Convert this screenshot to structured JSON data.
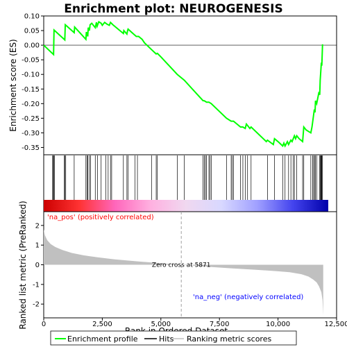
{
  "chart_data": {
    "type": "line",
    "title": "Enrichment plot: NEUROGENESIS",
    "colors": {
      "enrichment": "#00ff00",
      "hits": "#000000",
      "metric_fill": "#c0c0c0",
      "zero_cross": "#a0a0a0",
      "pos_label": "#ff0000",
      "neg_label": "#0000ff"
    },
    "top_panel": {
      "ylabel": "Enrichment score (ES)",
      "ylim": [
        -0.375,
        0.1
      ],
      "yticks": [
        0.1,
        0.05,
        0.0,
        -0.05,
        -0.1,
        -0.15,
        -0.2,
        -0.25,
        -0.3,
        -0.35
      ],
      "ytick_labels": [
        "0.10",
        "0.05",
        "0.00",
        "-0.05",
        "-0.10",
        "-0.15",
        "-0.20",
        "-0.25",
        "-0.30",
        "-0.35"
      ],
      "xlim": [
        0,
        12500
      ],
      "es_profile": {
        "x": [
          0,
          420,
          440,
          900,
          920,
          1300,
          1320,
          1800,
          1820,
          1880,
          1900,
          1950,
          1980,
          2050,
          2200,
          2250,
          2280,
          2350,
          2450,
          2500,
          2600,
          2700,
          2800,
          2850,
          2950,
          3400,
          3420,
          3550,
          3580,
          3600,
          3950,
          4050,
          4200,
          4300,
          4600,
          4800,
          4850,
          5000,
          5700,
          6000,
          6800,
          6850,
          6950,
          7050,
          7150,
          7800,
          8000,
          8050,
          8100,
          8400,
          8500,
          8600,
          8650,
          8700,
          8800,
          8850,
          9500,
          9550,
          9800,
          9850,
          10000,
          10200,
          10250,
          10300,
          10400,
          10450,
          10550,
          10600,
          10700,
          10750,
          10800,
          10900,
          11050,
          11100,
          11200,
          11400,
          11450,
          11500,
          11550,
          11580,
          11600,
          11650,
          11750,
          11780,
          11800,
          11850,
          11870,
          11900
        ],
        "y": [
          0.0,
          -0.032,
          0.052,
          0.018,
          0.07,
          0.043,
          0.062,
          0.02,
          0.045,
          0.03,
          0.06,
          0.05,
          0.07,
          0.075,
          0.06,
          0.078,
          0.065,
          0.08,
          0.075,
          0.068,
          0.078,
          0.072,
          0.068,
          0.078,
          0.07,
          0.04,
          0.05,
          0.038,
          0.05,
          0.055,
          0.03,
          0.03,
          0.02,
          0.008,
          -0.015,
          -0.03,
          -0.028,
          -0.04,
          -0.1,
          -0.12,
          -0.19,
          -0.19,
          -0.195,
          -0.195,
          -0.2,
          -0.25,
          -0.26,
          -0.26,
          -0.26,
          -0.28,
          -0.28,
          -0.285,
          -0.27,
          -0.275,
          -0.285,
          -0.28,
          -0.33,
          -0.325,
          -0.34,
          -0.32,
          -0.33,
          -0.345,
          -0.335,
          -0.345,
          -0.33,
          -0.34,
          -0.325,
          -0.33,
          -0.31,
          -0.32,
          -0.31,
          -0.32,
          -0.33,
          -0.28,
          -0.29,
          -0.3,
          -0.28,
          -0.25,
          -0.22,
          -0.23,
          -0.19,
          -0.2,
          -0.16,
          -0.17,
          -0.12,
          -0.06,
          -0.07,
          0.003
        ]
      }
    },
    "hits_panel": {
      "positions": [
        380,
        400,
        430,
        460,
        880,
        900,
        940,
        1300,
        1800,
        1850,
        1880,
        1950,
        2000,
        2200,
        2300,
        2450,
        2650,
        2750,
        2850,
        2900,
        3400,
        3550,
        3600,
        3900,
        4000,
        4600,
        4800,
        4850,
        5700,
        6000,
        6800,
        6850,
        6900,
        6950,
        7050,
        7100,
        7150,
        7800,
        8000,
        8050,
        8100,
        8400,
        8500,
        8600,
        8700,
        8850,
        9550,
        9850,
        10200,
        10300,
        10450,
        10550,
        10650,
        10700,
        10800,
        11050,
        11100,
        11400,
        11480,
        11520,
        11560,
        11600,
        11650,
        11780,
        11800,
        11830,
        11850,
        11870,
        11900
      ]
    },
    "bottom_panel": {
      "ylabel": "Ranked list metric (PreRanked)",
      "xlabel": "Rank in Ordered Dataset",
      "ylim": [
        -2.7,
        2.7
      ],
      "yticks": [
        2,
        1,
        0,
        -1,
        -2
      ],
      "ytick_labels": [
        "2",
        "1",
        "0",
        "-1",
        "-2"
      ],
      "xticks": [
        0,
        2500,
        5000,
        7500,
        10000,
        12500
      ],
      "xtick_labels": [
        "0",
        "2,500",
        "5,000",
        "7,500",
        "10,000",
        "12,500"
      ],
      "zero_cross_label": "Zero cross at 5871",
      "zero_cross_rank": 5871,
      "pos_label": "'na_pos' (positively correlated)",
      "neg_label": "'na_neg' (negatively correlated)",
      "metric_curve": {
        "x": [
          0,
          50,
          150,
          300,
          500,
          800,
          1200,
          1700,
          2300,
          3000,
          4000,
          5000,
          5871,
          7000,
          8000,
          9000,
          10000,
          10500,
          11000,
          11300,
          11500,
          11650,
          11750,
          11850,
          11900,
          11930
        ],
        "y": [
          1.8,
          1.5,
          1.25,
          1.05,
          0.9,
          0.75,
          0.6,
          0.48,
          0.38,
          0.28,
          0.17,
          0.08,
          0.0,
          -0.1,
          -0.18,
          -0.25,
          -0.33,
          -0.38,
          -0.48,
          -0.6,
          -0.75,
          -0.9,
          -1.1,
          -1.4,
          -1.8,
          -2.55
        ]
      },
      "colorbar_stops": [
        "#cc0000",
        "#ff3333",
        "#ff66bb",
        "#ffb0e0",
        "#f0d8f0",
        "#d8d8ff",
        "#a0a0ff",
        "#4444ee",
        "#0000aa"
      ]
    },
    "legend": {
      "items": [
        {
          "label": "Enrichment profile",
          "color": "#00ff00",
          "kind": "line"
        },
        {
          "label": "Hits",
          "color": "#000000",
          "kind": "line"
        },
        {
          "label": "Ranking metric scores",
          "color": "#c0c0c0",
          "kind": "line"
        }
      ]
    }
  }
}
